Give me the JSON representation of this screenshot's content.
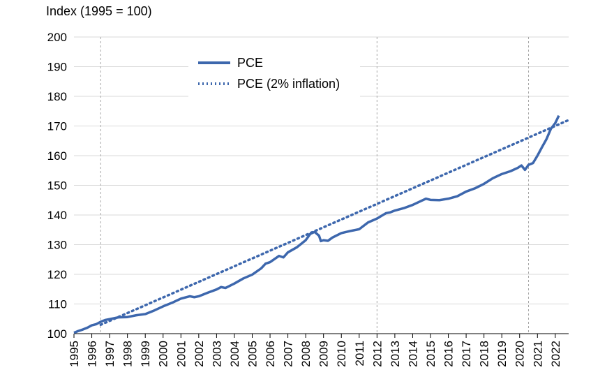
{
  "chart_data": {
    "type": "line",
    "title": "",
    "ylabel": "Index (1995 = 100)",
    "xlabel": "",
    "ylim": [
      100,
      200
    ],
    "xlim": [
      1995,
      2022.75
    ],
    "yticks": [
      100,
      110,
      120,
      130,
      140,
      150,
      160,
      170,
      180,
      190,
      200
    ],
    "xticks": [
      "1995",
      "1996",
      "1997",
      "1998",
      "1999",
      "2000",
      "2001",
      "2002",
      "2003",
      "2004",
      "2005",
      "2006",
      "2007",
      "2008",
      "2009",
      "2010",
      "2011",
      "2012",
      "2013",
      "2014",
      "2015",
      "2016",
      "2017",
      "2018",
      "2019",
      "2020",
      "2021",
      "2022"
    ],
    "vlines": [
      1996.5,
      2012.0,
      2020.5
    ],
    "grid": true,
    "legend_position": "top-left",
    "colors": {
      "series": "#3d67ad",
      "grid": "#d9d9d9",
      "vline": "#a6a6a6"
    },
    "series": [
      {
        "name": "PCE",
        "style": "solid",
        "x": [
          1995.0,
          1995.25,
          1995.5,
          1995.75,
          1996.0,
          1996.25,
          1996.5,
          1996.75,
          1997.0,
          1997.5,
          1998.0,
          1998.5,
          1999.0,
          1999.5,
          2000.0,
          2000.5,
          2001.0,
          2001.5,
          2001.75,
          2002.0,
          2002.5,
          2003.0,
          2003.25,
          2003.5,
          2004.0,
          2004.5,
          2005.0,
          2005.5,
          2005.75,
          2006.0,
          2006.5,
          2006.75,
          2007.0,
          2007.5,
          2008.0,
          2008.25,
          2008.5,
          2008.75,
          2008.85,
          2009.0,
          2009.25,
          2009.5,
          2010.0,
          2010.5,
          2011.0,
          2011.5,
          2012.0,
          2012.25,
          2012.5,
          2012.75,
          2013.0,
          2013.5,
          2014.0,
          2014.5,
          2014.75,
          2015.0,
          2015.5,
          2016.0,
          2016.5,
          2017.0,
          2017.5,
          2018.0,
          2018.5,
          2019.0,
          2019.5,
          2019.9,
          2020.1,
          2020.3,
          2020.5,
          2020.75,
          2021.0,
          2021.25,
          2021.5,
          2021.75,
          2022.0,
          2022.2
        ],
        "values": [
          100.3,
          100.9,
          101.4,
          102.0,
          102.8,
          103.2,
          104.0,
          104.6,
          104.9,
          105.5,
          105.6,
          106.2,
          106.6,
          107.8,
          109.2,
          110.4,
          111.8,
          112.6,
          112.3,
          112.6,
          113.8,
          114.9,
          115.7,
          115.4,
          116.9,
          118.6,
          119.9,
          122.0,
          123.6,
          124.1,
          126.2,
          125.7,
          127.4,
          129.1,
          131.5,
          133.6,
          134.3,
          133.0,
          131.2,
          131.5,
          131.3,
          132.4,
          133.9,
          134.6,
          135.2,
          137.5,
          138.8,
          139.7,
          140.6,
          140.9,
          141.5,
          142.3,
          143.4,
          144.8,
          145.5,
          145.1,
          145.0,
          145.5,
          146.3,
          147.9,
          149.0,
          150.5,
          152.4,
          153.8,
          154.8,
          155.9,
          156.7,
          155.2,
          156.9,
          157.5,
          160.0,
          162.8,
          165.5,
          169.0,
          171.0,
          173.5
        ]
      },
      {
        "name": "PCE (2% inflation)",
        "style": "dotted",
        "x": [
          1996.5,
          2022.75
        ],
        "values": [
          103.0,
          172.0
        ]
      }
    ]
  }
}
